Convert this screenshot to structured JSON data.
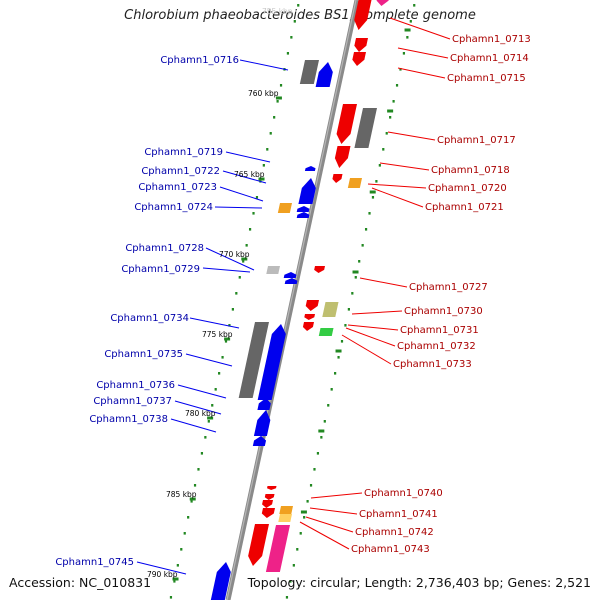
{
  "title": "Chlorobium phaeobacteroides BS1, complete genome",
  "footer": {
    "accession": "Accession: NC_010831",
    "summary": "Topology: circular; Length: 2,736,403 bp; Genes: 2,521"
  },
  "colors": {
    "forward": "#0000ee",
    "reverse": "#ee0000",
    "grey": "#666666",
    "ruler": "#228822"
  },
  "ruler_marks": [
    "760 kbp",
    "765 kbp",
    "770 kbp",
    "775 kbp",
    "780 kbp",
    "785 kbp",
    "790 kbp"
  ],
  "left_labels": [
    "Cphamn1_0716",
    "Cphamn1_0719",
    "Cphamn1_0722",
    "Cphamn1_0723",
    "Cphamn1_0724",
    "Cphamn1_0728",
    "Cphamn1_0729",
    "Cphamn1_0734",
    "Cphamn1_0735",
    "Cphamn1_0736",
    "Cphamn1_0737",
    "Cphamn1_0738",
    "Cphamn1_0745"
  ],
  "right_labels": [
    "Cphamn1_0713",
    "Cphamn1_0714",
    "Cphamn1_0715",
    "Cphamn1_0717",
    "Cphamn1_0718",
    "Cphamn1_0720",
    "Cphamn1_0721",
    "Cphamn1_0727",
    "Cphamn1_0730",
    "Cphamn1_0731",
    "Cphamn1_0732",
    "Cphamn1_0733",
    "Cphamn1_0740",
    "Cphamn1_0741",
    "Cphamn1_0742",
    "Cphamn1_0743"
  ],
  "faded_label": "755 kbp"
}
